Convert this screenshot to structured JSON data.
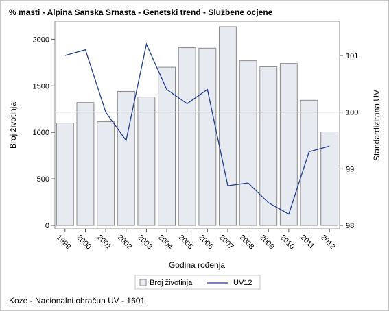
{
  "chart_data": {
    "type": "bar",
    "title": "% masti - Alpina Sanska Srnasta - Genetski trend - Službene ocjene",
    "xlabel": "Godina rođenja",
    "ylabel": "Broj životinja",
    "y2label": "Standardizirana UV",
    "categories": [
      "1999",
      "2000",
      "2001",
      "2002",
      "2003",
      "2004",
      "2005",
      "2006",
      "2007",
      "2008",
      "2009",
      "2010",
      "2011",
      "2012"
    ],
    "ylim": [
      0,
      2150
    ],
    "yticks": [
      0,
      500,
      1000,
      1500,
      2000
    ],
    "y2lim": [
      97.9,
      100.8
    ],
    "y2ticks": [
      98,
      99,
      100,
      101
    ],
    "reference_line_y2": 100,
    "series": [
      {
        "name": "Broj životinja",
        "kind": "bar",
        "axis": "left",
        "color": "#e8eaf2",
        "values": [
          1100,
          1320,
          1115,
          1440,
          1380,
          1700,
          1910,
          1905,
          2135,
          1770,
          1705,
          1740,
          1345,
          1005
        ]
      },
      {
        "name": "UV12",
        "kind": "line",
        "axis": "right",
        "color": "#1f3d8f",
        "values": [
          101.0,
          101.1,
          100.0,
          99.5,
          101.2,
          100.4,
          100.15,
          100.4,
          98.7,
          98.75,
          98.4,
          98.2,
          99.3,
          99.4
        ]
      }
    ],
    "legend_position": "bottom",
    "grid": false
  },
  "footnote": "Koze - Nacionalni obračun UV - 1601"
}
